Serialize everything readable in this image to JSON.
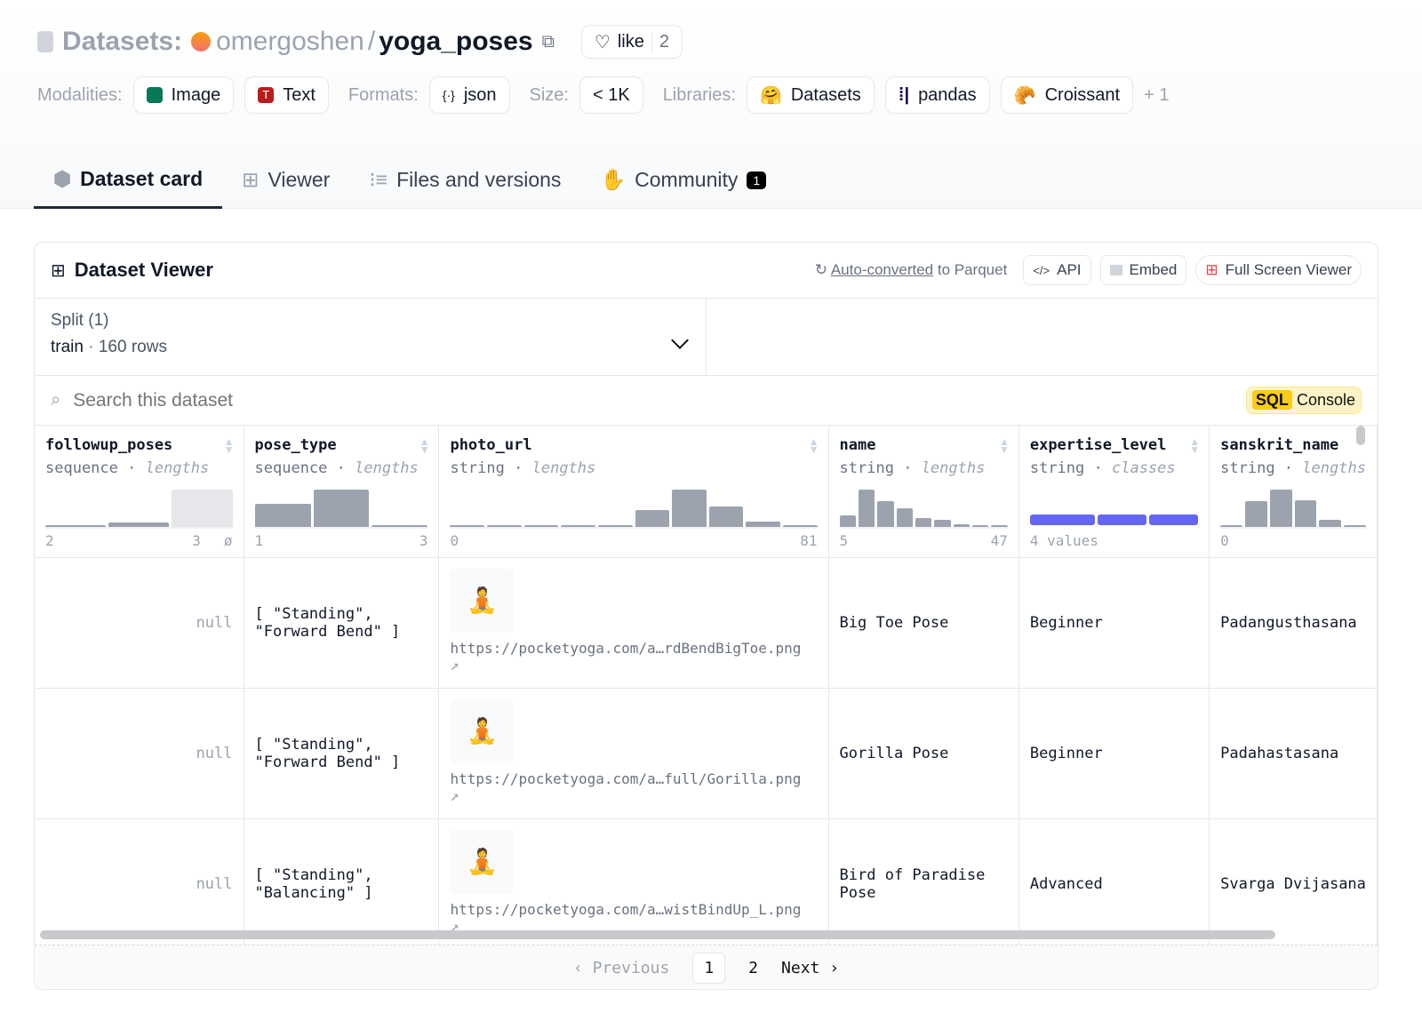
{
  "header": {
    "section": "Datasets:",
    "owner": "omergoshen",
    "separator": "/",
    "repo": "yoga_poses",
    "like_label": "like",
    "like_count": "2"
  },
  "tags": {
    "modalities_label": "Modalities:",
    "modalities": [
      "Image",
      "Text"
    ],
    "formats_label": "Formats:",
    "formats": [
      "json"
    ],
    "size_label": "Size:",
    "size": "< 1K",
    "libraries_label": "Libraries:",
    "libraries": [
      "Datasets",
      "pandas",
      "Croissant"
    ],
    "more": "+ 1"
  },
  "tabs": [
    {
      "label": "Dataset card",
      "active": true
    },
    {
      "label": "Viewer"
    },
    {
      "label": "Files and versions"
    },
    {
      "label": "Community",
      "badge": "1"
    }
  ],
  "viewer": {
    "title": "Dataset Viewer",
    "auto_link": "Auto-converted",
    "auto_rest": " to Parquet",
    "api": "API",
    "embed": "Embed",
    "fullscreen": "Full Screen Viewer",
    "split_label": "Split (1)",
    "split_value": "train",
    "rows": "160 rows",
    "search_placeholder": "Search this dataset",
    "sql": "SQL",
    "console": "Console"
  },
  "columns": [
    {
      "name": "followup_poses",
      "type": "sequence",
      "stat": "lengths",
      "hist": [
        0.05,
        0.12,
        1.0
      ],
      "min": "2",
      "max": "3",
      "extra": "ø"
    },
    {
      "name": "pose_type",
      "type": "sequence",
      "stat": "lengths",
      "hist": [
        0.62,
        1.0,
        0.05
      ],
      "min": "1",
      "max": "3"
    },
    {
      "name": "photo_url",
      "type": "string",
      "stat": "lengths",
      "hist": [
        0.05,
        0,
        0,
        0,
        0,
        0.45,
        1.0,
        0.55,
        0.15,
        0.05
      ],
      "min": "0",
      "max": "81"
    },
    {
      "name": "name",
      "type": "string",
      "stat": "lengths",
      "hist": [
        0.3,
        1.0,
        0.68,
        0.5,
        0.25,
        0.2,
        0.08,
        0.05,
        0.05
      ],
      "min": "5",
      "max": "47"
    },
    {
      "name": "expertise_level",
      "type": "string",
      "stat": "classes",
      "min": "4 values",
      "max": ""
    },
    {
      "name": "sanskrit_name",
      "type": "string",
      "stat": "lengths",
      "hist": [
        0.05,
        0.7,
        1.0,
        0.72,
        0.2,
        0.05
      ],
      "min": "0",
      "max": ""
    }
  ],
  "class_bar_color": "#6366f1",
  "rows": [
    {
      "followup": "null",
      "pose_type_1": "[ \"Standing\",",
      "pose_type_2": "\"Forward Bend\" ]",
      "url": "https://pocketyoga.com/a…rdBendBigToe.png",
      "name_1": "Big Toe Pose",
      "name_2": "",
      "level": "Beginner",
      "sanskrit": "Padangusthasana"
    },
    {
      "followup": "null",
      "pose_type_1": "[ \"Standing\",",
      "pose_type_2": "\"Forward Bend\" ]",
      "url": "https://pocketyoga.com/a…full/Gorilla.png",
      "name_1": "Gorilla Pose",
      "name_2": "",
      "level": "Beginner",
      "sanskrit": "Padahastasana"
    },
    {
      "followup": "null",
      "pose_type_1": "[ \"Standing\",",
      "pose_type_2": "\"Balancing\" ]",
      "url": "https://pocketyoga.com/a…wistBindUp_L.png",
      "name_1": "Bird of Paradise",
      "name_2": "Pose",
      "level": "Advanced",
      "sanskrit": "Svarga Dvijasana"
    }
  ],
  "pager": {
    "prev": "Previous",
    "pages": [
      "1",
      "2"
    ],
    "next": "Next"
  }
}
